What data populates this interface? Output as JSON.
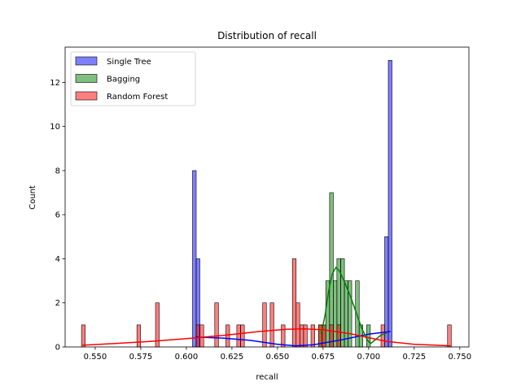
{
  "chart_data": {
    "type": "histogram",
    "title": "Distribution of recall",
    "xlabel": "recall",
    "ylabel": "Count",
    "xlim": [
      0.5335,
      0.755
    ],
    "ylim": [
      0,
      13.6
    ],
    "xticks": [
      "0.550",
      "0.575",
      "0.600",
      "0.625",
      "0.650",
      "0.675",
      "0.700",
      "0.725",
      "0.750"
    ],
    "yticks": [
      "0",
      "2",
      "4",
      "6",
      "8",
      "10",
      "12"
    ],
    "bin_width": 0.00203,
    "legend_position": "upper-left",
    "series": [
      {
        "name": "Single Tree",
        "color": "#0000ff",
        "bins": [
          {
            "x": 0.6044,
            "count": 8
          },
          {
            "x": 0.6064,
            "count": 4
          },
          {
            "x": 0.7098,
            "count": 5
          },
          {
            "x": 0.7118,
            "count": 13
          }
        ],
        "kde": [
          [
            0.605,
            0.45
          ],
          [
            0.62,
            0.4
          ],
          [
            0.635,
            0.3
          ],
          [
            0.65,
            0.12
          ],
          [
            0.66,
            0.05
          ],
          [
            0.67,
            0.1
          ],
          [
            0.685,
            0.32
          ],
          [
            0.7,
            0.58
          ],
          [
            0.712,
            0.7
          ]
        ]
      },
      {
        "name": "Bagging",
        "color": "#008000",
        "bins": [
          {
            "x": 0.6735,
            "count": 1
          },
          {
            "x": 0.6755,
            "count": 1
          },
          {
            "x": 0.6775,
            "count": 3
          },
          {
            "x": 0.6796,
            "count": 7
          },
          {
            "x": 0.6816,
            "count": 3
          },
          {
            "x": 0.6836,
            "count": 4
          },
          {
            "x": 0.6857,
            "count": 4
          },
          {
            "x": 0.6877,
            "count": 3
          },
          {
            "x": 0.6897,
            "count": 3
          },
          {
            "x": 0.6938,
            "count": 3
          },
          {
            "x": 0.6958,
            "count": 1
          },
          {
            "x": 0.6999,
            "count": 1
          }
        ],
        "kde": [
          [
            0.674,
            0.6
          ],
          [
            0.676,
            1.4
          ],
          [
            0.678,
            2.5
          ],
          [
            0.68,
            3.3
          ],
          [
            0.682,
            3.6
          ],
          [
            0.684,
            3.45
          ],
          [
            0.687,
            2.9
          ],
          [
            0.69,
            2.3
          ],
          [
            0.693,
            1.6
          ],
          [
            0.696,
            0.9
          ],
          [
            0.699,
            0.35
          ],
          [
            0.701,
            0.15
          ],
          [
            0.704,
            0.35
          ],
          [
            0.707,
            0.55
          ],
          [
            0.71,
            0.62
          ]
        ]
      },
      {
        "name": "Random Forest",
        "color": "#ff0000",
        "bins": [
          {
            "x": 0.5435,
            "count": 1
          },
          {
            "x": 0.5739,
            "count": 1
          },
          {
            "x": 0.5841,
            "count": 2
          },
          {
            "x": 0.6064,
            "count": 1
          },
          {
            "x": 0.6085,
            "count": 1
          },
          {
            "x": 0.6166,
            "count": 2
          },
          {
            "x": 0.6227,
            "count": 1
          },
          {
            "x": 0.6287,
            "count": 1
          },
          {
            "x": 0.6308,
            "count": 1
          },
          {
            "x": 0.6429,
            "count": 2
          },
          {
            "x": 0.647,
            "count": 2
          },
          {
            "x": 0.6531,
            "count": 1
          },
          {
            "x": 0.6592,
            "count": 4
          },
          {
            "x": 0.6612,
            "count": 2
          },
          {
            "x": 0.6633,
            "count": 1
          },
          {
            "x": 0.6653,
            "count": 1
          },
          {
            "x": 0.6694,
            "count": 1
          },
          {
            "x": 0.6735,
            "count": 1
          },
          {
            "x": 0.6755,
            "count": 1
          },
          {
            "x": 0.6796,
            "count": 1
          },
          {
            "x": 0.6836,
            "count": 1
          },
          {
            "x": 0.7078,
            "count": 1
          },
          {
            "x": 0.7443,
            "count": 1
          }
        ],
        "kde": [
          [
            0.543,
            0.08
          ],
          [
            0.56,
            0.15
          ],
          [
            0.58,
            0.25
          ],
          [
            0.6,
            0.38
          ],
          [
            0.62,
            0.52
          ],
          [
            0.64,
            0.7
          ],
          [
            0.655,
            0.8
          ],
          [
            0.665,
            0.82
          ],
          [
            0.675,
            0.78
          ],
          [
            0.69,
            0.6
          ],
          [
            0.7,
            0.42
          ],
          [
            0.71,
            0.25
          ],
          [
            0.725,
            0.12
          ],
          [
            0.745,
            0.05
          ]
        ]
      }
    ]
  }
}
